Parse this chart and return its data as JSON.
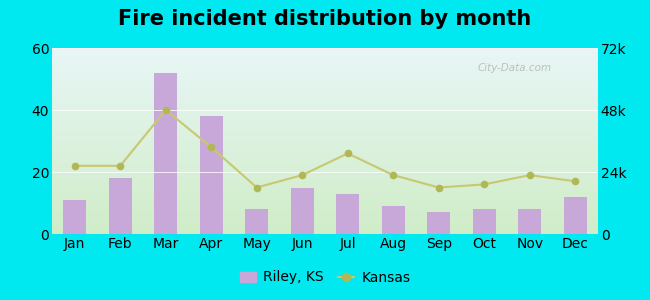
{
  "title": "Fire incident distribution by month",
  "months": [
    "Jan",
    "Feb",
    "Mar",
    "Apr",
    "May",
    "Jun",
    "Jul",
    "Aug",
    "Sep",
    "Oct",
    "Nov",
    "Dec"
  ],
  "riley_ks": [
    11,
    18,
    52,
    38,
    8,
    15,
    13,
    9,
    7,
    8,
    8,
    12
  ],
  "kansas": [
    22,
    22,
    40,
    28,
    15,
    19,
    26,
    19,
    15,
    16,
    19,
    17
  ],
  "bar_color": "#c8a8d8",
  "line_color": "#c8c870",
  "line_marker_color": "#b0b855",
  "ylim_left": [
    0,
    60
  ],
  "ylim_right": [
    0,
    72000
  ],
  "yticks_left": [
    0,
    20,
    40,
    60
  ],
  "yticks_right": [
    0,
    24000,
    48000,
    72000
  ],
  "ytick_labels_right": [
    "0",
    "24k",
    "48k",
    "72k"
  ],
  "outer_bg": "#00e8f0",
  "plot_bg_bottom": "#d0edc8",
  "plot_bg_top": "#daf0f0",
  "legend_riley_label": "Riley, KS",
  "legend_kansas_label": "Kansas",
  "watermark": "City-Data.com",
  "title_fontsize": 15,
  "axis_fontsize": 10,
  "legend_fontsize": 10
}
